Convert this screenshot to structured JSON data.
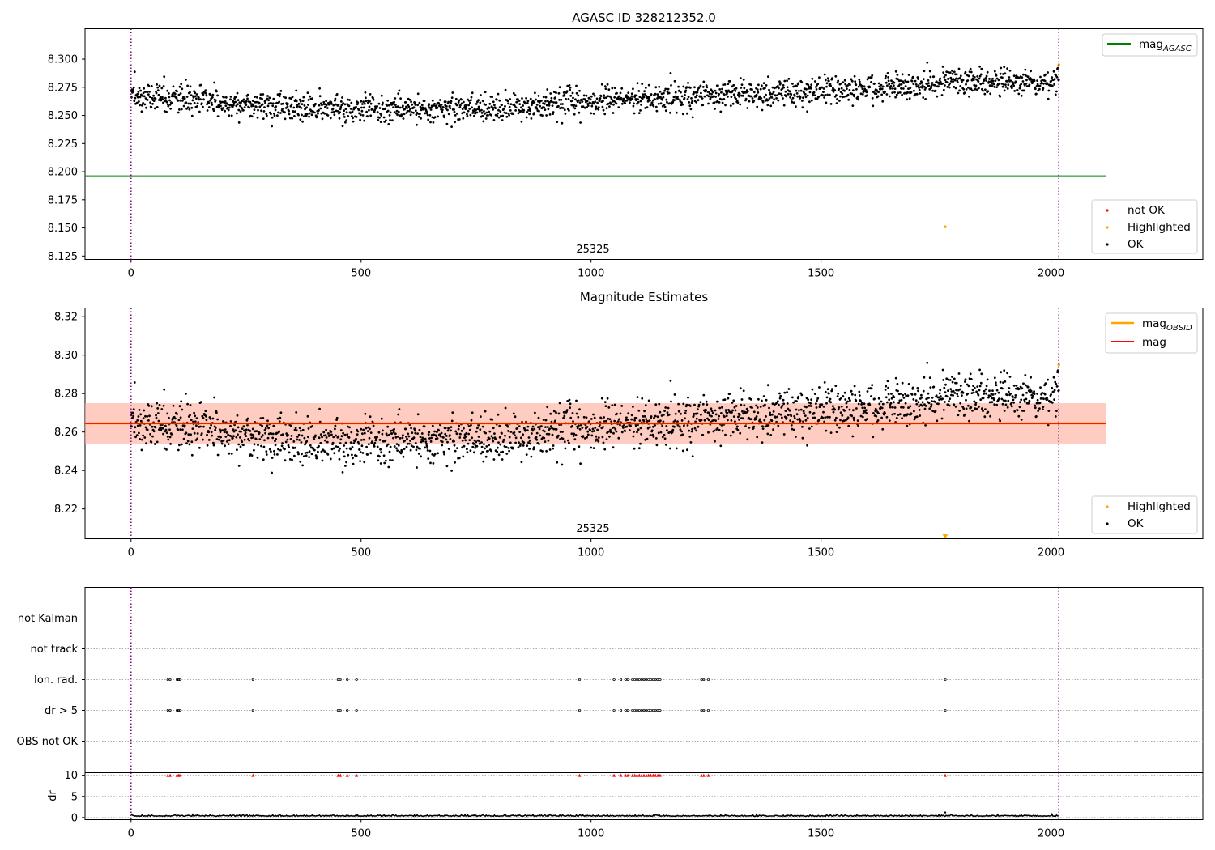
{
  "chart_data": [
    {
      "type": "scatter",
      "title": "AGASC ID 328212352.0",
      "xlim": [
        -100,
        2330
      ],
      "ylim": [
        8.122,
        8.327
      ],
      "xticks": [
        0,
        500,
        1000,
        1500,
        2000
      ],
      "xtick_labels": [
        "0",
        "500",
        "1000",
        "1500",
        "2000"
      ],
      "yticks": [
        8.125,
        8.15,
        8.175,
        8.2,
        8.225,
        8.25,
        8.275,
        8.3
      ],
      "ytick_labels": [
        "8.125",
        "8.150",
        "8.175",
        "8.200",
        "8.225",
        "8.250",
        "8.275",
        "8.300"
      ],
      "vlines": [
        0,
        2017
      ],
      "vline_color": "#800080",
      "annotation": {
        "text": "25325",
        "x": 1010,
        "y": 8.127
      },
      "hlines": [
        {
          "name": "mag_AGASC",
          "y": 8.196,
          "x_range": [
            -100,
            2120
          ],
          "color": "#008000"
        }
      ],
      "series": [
        {
          "name": "not OK",
          "color": "#ff0000",
          "x": [],
          "y": []
        },
        {
          "name": "Highlighted",
          "color": "#ffa500",
          "x": [
            1770,
            2017
          ],
          "y": [
            8.151,
            8.295
          ]
        },
        {
          "name": "OK",
          "color": "#000000",
          "n": 2018,
          "trend": [
            [
              0,
              8.268
            ],
            [
              200,
              8.261
            ],
            [
              400,
              8.256
            ],
            [
              600,
              8.256
            ],
            [
              800,
              8.257
            ],
            [
              1000,
              8.262
            ],
            [
              1200,
              8.267
            ],
            [
              1400,
              8.27
            ],
            [
              1600,
              8.274
            ],
            [
              1800,
              8.28
            ],
            [
              2000,
              8.279
            ],
            [
              2017,
              8.285
            ]
          ],
          "scatter_std": 0.006
        }
      ],
      "legend": {
        "lines": [
          {
            "label_main": "mag",
            "label_sub": "AGASC",
            "color": "#008000"
          }
        ],
        "points": [
          {
            "label": "not OK",
            "color": "#ff0000"
          },
          {
            "label": "Highlighted",
            "color": "#ffa500"
          },
          {
            "label": "OK",
            "color": "#000000"
          }
        ]
      }
    },
    {
      "type": "scatter",
      "title": "Magnitude Estimates",
      "xlim": [
        -100,
        2330
      ],
      "ylim": [
        8.2045,
        8.3245
      ],
      "xticks": [
        0,
        500,
        1000,
        1500,
        2000
      ],
      "xtick_labels": [
        "0",
        "500",
        "1000",
        "1500",
        "2000"
      ],
      "yticks": [
        8.22,
        8.24,
        8.26,
        8.28,
        8.3,
        8.32
      ],
      "ytick_labels": [
        "8.22",
        "8.24",
        "8.26",
        "8.28",
        "8.30",
        "8.32"
      ],
      "vlines": [
        0,
        2017
      ],
      "vline_color": "#800080",
      "annotation": {
        "text": "25325",
        "x": 1010,
        "y": 8.2055
      },
      "hlines": [
        {
          "name": "mag_OBSID",
          "y": 8.2645,
          "x_range": [
            -100,
            2120
          ],
          "color": "#ffa500"
        },
        {
          "name": "mag",
          "y": 8.2645,
          "x_range": [
            -100,
            2120
          ],
          "color": "#ff0000"
        }
      ],
      "bands": [
        {
          "y0": 8.254,
          "y1": 8.275,
          "color": "#ffc0cb",
          "opacity": 0.45
        },
        {
          "y0": 8.254,
          "y1": 8.275,
          "color": "#ffa07a",
          "opacity": 0.35
        }
      ],
      "series": [
        {
          "name": "Highlighted",
          "color": "#ffa500",
          "x": [
            1770,
            2017
          ],
          "y": [
            8.2055,
            8.295
          ]
        },
        {
          "name": "OK",
          "color": "#000000",
          "n": 2018,
          "trend": [
            [
              0,
              8.265
            ],
            [
              200,
              8.26
            ],
            [
              400,
              8.254
            ],
            [
              600,
              8.256
            ],
            [
              800,
              8.257
            ],
            [
              1000,
              8.262
            ],
            [
              1200,
              8.266
            ],
            [
              1400,
              8.27
            ],
            [
              1600,
              8.273
            ],
            [
              1800,
              8.279
            ],
            [
              2000,
              8.278
            ],
            [
              2017,
              8.285
            ]
          ],
          "scatter_std": 0.006
        }
      ],
      "legend": {
        "lines": [
          {
            "label_main": "mag",
            "label_sub": "OBSID",
            "color": "#ffa500"
          },
          {
            "label_main": "mag",
            "label_sub": "",
            "color": "#ff0000"
          }
        ],
        "points": [
          {
            "label": "Highlighted",
            "color": "#ffa500"
          },
          {
            "label": "OK",
            "color": "#000000"
          }
        ]
      }
    },
    {
      "type": "scatter",
      "title": "",
      "xlim": [
        -100,
        2330
      ],
      "categories": [
        "not Kalman",
        "not track",
        "Ion. rad.",
        "dr > 5",
        "OBS not OK"
      ],
      "vlines": [
        0,
        2017
      ],
      "vline_color": "#800080",
      "flag_x": [
        80,
        85,
        100,
        103,
        106,
        265,
        450,
        455,
        470,
        490,
        975,
        1050,
        1065,
        1075,
        1080,
        1090,
        1095,
        1100,
        1105,
        1110,
        1115,
        1120,
        1125,
        1130,
        1135,
        1140,
        1145,
        1150,
        1240,
        1245,
        1255,
        1770
      ],
      "flagged_categories": [
        "Ion. rad.",
        "dr > 5"
      ]
    },
    {
      "type": "line",
      "title": "",
      "ylabel": "dr",
      "xlim": [
        -100,
        2330
      ],
      "ylim": [
        -0.5,
        10.6
      ],
      "xticks": [
        0,
        500,
        1000,
        1500,
        2000
      ],
      "xtick_labels": [
        "0",
        "500",
        "1000",
        "1500",
        "2000"
      ],
      "yticks": [
        0,
        5,
        10
      ],
      "ytick_labels": [
        "0",
        "5",
        "10"
      ],
      "vlines": [
        0,
        2017
      ],
      "vline_color": "#800080",
      "dr_baseline": 0.3,
      "dr_noise": 0.15,
      "clipped_marker_y": 10,
      "clipped_marker_color": "#ff0000"
    }
  ]
}
